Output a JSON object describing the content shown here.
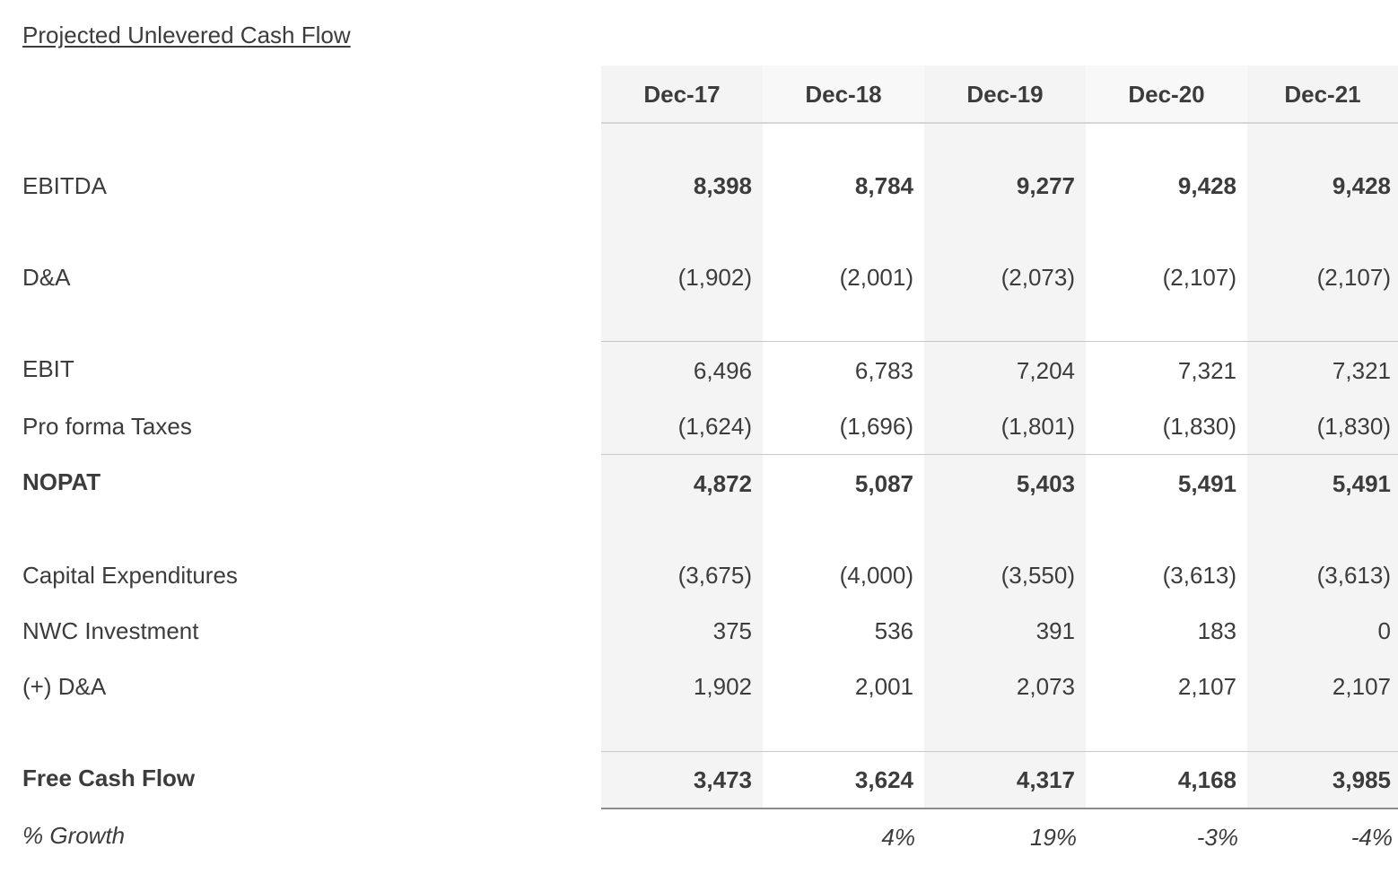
{
  "title": "Projected Unlevered Cash Flow",
  "periods": [
    "Dec-17",
    "Dec-18",
    "Dec-19",
    "Dec-20",
    "Dec-21"
  ],
  "rows": [
    {
      "label": "EBITDA",
      "values": [
        "8,398",
        "8,784",
        "9,277",
        "9,428",
        "9,428"
      ],
      "bold": true
    },
    {
      "label": "D&A",
      "values": [
        "(1,902)",
        "(2,001)",
        "(2,073)",
        "(2,107)",
        "(2,107)"
      ],
      "bold": false
    },
    {
      "label": "EBIT",
      "values": [
        "6,496",
        "6,783",
        "7,204",
        "7,321",
        "7,321"
      ],
      "bold": false
    },
    {
      "label": "Pro forma Taxes",
      "values": [
        "(1,624)",
        "(1,696)",
        "(1,801)",
        "(1,830)",
        "(1,830)"
      ],
      "bold": false
    },
    {
      "label": "NOPAT",
      "values": [
        "4,872",
        "5,087",
        "5,403",
        "5,491",
        "5,491"
      ],
      "bold": true
    },
    {
      "label": "Capital Expenditures",
      "values": [
        "(3,675)",
        "(4,000)",
        "(3,550)",
        "(3,613)",
        "(3,613)"
      ],
      "bold": false
    },
    {
      "label": "NWC Investment",
      "values": [
        "375",
        "536",
        "391",
        "183",
        "0"
      ],
      "bold": false
    },
    {
      "label": "(+) D&A",
      "values": [
        "1,902",
        "2,001",
        "2,073",
        "2,107",
        "2,107"
      ],
      "bold": false
    },
    {
      "label": "Free Cash Flow",
      "values": [
        "3,473",
        "3,624",
        "4,317",
        "4,168",
        "3,985"
      ],
      "bold": true
    },
    {
      "label": "% Growth",
      "values": [
        "",
        "4%",
        "19%",
        "-3%",
        "-4%"
      ],
      "bold": false,
      "italic": true
    }
  ]
}
